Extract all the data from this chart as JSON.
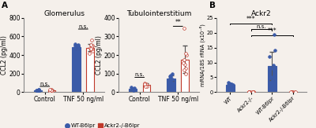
{
  "panel_A1_title": "Glomerulus",
  "panel_A2_title": "Tubulointerstitium",
  "panel_B_title": "Ackr2",
  "ylabel_A": "CCL2 (pg/ml)",
  "ylabel_B": "mRNA/18S rRNA (x10⁻⁶)",
  "blue_color": "#3b5ba8",
  "red_color": "#c0392b",
  "glom_ctrl_blue": [
    18,
    22,
    14,
    28,
    12,
    20,
    16,
    25,
    10
  ],
  "glom_ctrl_red": [
    20,
    15,
    28,
    10,
    22,
    18,
    30
  ],
  "glom_tnf_blue": [
    480,
    460,
    520,
    500,
    440,
    490,
    510,
    470,
    495,
    505
  ],
  "glom_tnf_red": [
    480,
    420,
    560,
    440,
    500,
    480,
    460,
    490,
    510,
    470
  ],
  "tubi_ctrl_blue": [
    18,
    14,
    22,
    10,
    25,
    16,
    20
  ],
  "tubi_ctrl_red": [
    38,
    42,
    30,
    48,
    32,
    45
  ],
  "tubi_tnf_blue": [
    65,
    80,
    55,
    100,
    60,
    90,
    75,
    70,
    85
  ],
  "tubi_tnf_red": [
    150,
    200,
    100,
    345,
    175,
    130,
    160,
    120,
    210
  ],
  "ackr2_WT": [
    2.8,
    2.5,
    2.0,
    1.8,
    2.2,
    3.0,
    2.6,
    2.4,
    1.5,
    2.8,
    3.2,
    1.9,
    2.1,
    2.7,
    2.3
  ],
  "ackr2_Ackr2ko": [
    0.05,
    0.08,
    0.03,
    0.06,
    0.04,
    0.07,
    0.02,
    0.05,
    0.04
  ],
  "ackr2_WTB6lpr": [
    8.5,
    5.0,
    4.0,
    14.0,
    9.0,
    7.0,
    6.5,
    19.5,
    3.5,
    8.0,
    12.0
  ],
  "ackr2_Ackr2koB6lpr": [
    0.1,
    0.05,
    0.08,
    0.15,
    0.06,
    0.09,
    0.12,
    0.07
  ],
  "A1_ylim": [
    0,
    800
  ],
  "A1_yticks": [
    0,
    200,
    400,
    600,
    800
  ],
  "A2_ylim": [
    0,
    400
  ],
  "A2_yticks": [
    0,
    100,
    200,
    300,
    400
  ],
  "B_ylim": [
    0,
    25
  ],
  "B_yticks": [
    0,
    5,
    10,
    15,
    20,
    25
  ],
  "xtick_labels_A": [
    "Control",
    "TNF 50 ng/ml"
  ],
  "xtick_labels_B": [
    "WT",
    "Ackr2-/-",
    "WT-B6lpr",
    "Ackr2-/-B6lpr"
  ],
  "legend_blue_label": "WT-B6lpr",
  "legend_red_label": "Ackr2-/-B6lpr",
  "bg_color": "#f5f0eb"
}
